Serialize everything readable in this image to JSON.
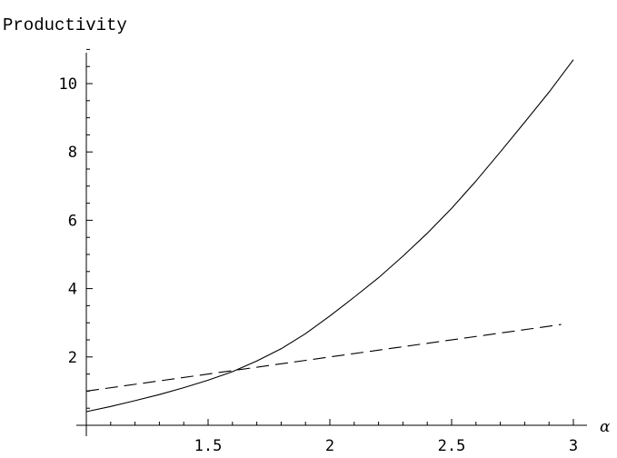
{
  "chart_data": {
    "type": "line",
    "title": "",
    "xlabel": "α",
    "ylabel": "Productivity",
    "xlim": [
      1,
      3
    ],
    "ylim": [
      0,
      11
    ],
    "x_ticks": [
      1.5,
      2,
      2.5,
      3
    ],
    "x_tick_labels": [
      "1.5",
      "2",
      "2.5",
      "3"
    ],
    "y_ticks": [
      2,
      4,
      6,
      8,
      10
    ],
    "y_tick_labels": [
      "2",
      "4",
      "6",
      "8",
      "10"
    ],
    "x_minor_step": 0.1,
    "y_minor_step": 0.5,
    "grid": false,
    "series": [
      {
        "style": "solid",
        "x": [
          1.0,
          1.1,
          1.2,
          1.3,
          1.4,
          1.5,
          1.6,
          1.7,
          1.8,
          1.9,
          2.0,
          2.1,
          2.2,
          2.3,
          2.4,
          2.5,
          2.6,
          2.7,
          2.8,
          2.9,
          3.0
        ],
        "values": [
          0.4,
          0.55,
          0.72,
          0.9,
          1.1,
          1.32,
          1.57,
          1.88,
          2.24,
          2.68,
          3.2,
          3.75,
          4.32,
          4.95,
          5.62,
          6.35,
          7.15,
          8.0,
          8.87,
          9.75,
          10.7
        ]
      },
      {
        "style": "dashed",
        "x": [
          1.0,
          2.95
        ],
        "values": [
          1.0,
          2.95
        ]
      }
    ]
  }
}
